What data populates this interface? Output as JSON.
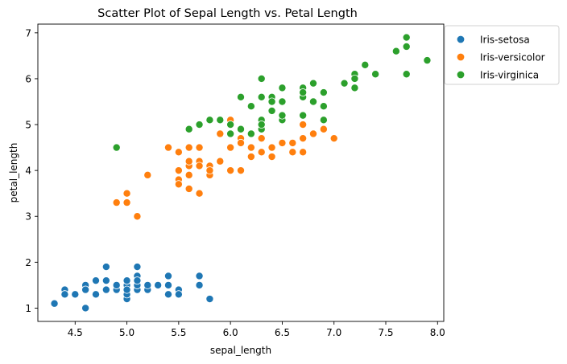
{
  "chart_data": {
    "type": "scatter",
    "title": "Scatter Plot of Sepal Length vs. Petal Length",
    "xlabel": "sepal_length",
    "ylabel": "petal_length",
    "xlim": [
      4.14,
      8.06
    ],
    "ylim": [
      0.71,
      7.19
    ],
    "xticks": [
      4.5,
      5.0,
      5.5,
      6.0,
      6.5,
      7.0,
      7.5,
      8.0
    ],
    "xtick_labels": [
      "4.5",
      "5.0",
      "5.5",
      "6.0",
      "6.5",
      "7.0",
      "7.5",
      "8.0"
    ],
    "yticks": [
      1,
      2,
      3,
      4,
      5,
      6,
      7
    ],
    "ytick_labels": [
      "1",
      "2",
      "3",
      "4",
      "5",
      "6",
      "7"
    ],
    "grid": false,
    "legend_position": "outside-top-right",
    "series": [
      {
        "name": "Iris-setosa",
        "color": "#1f77b4",
        "points": [
          [
            5.1,
            1.4
          ],
          [
            4.9,
            1.4
          ],
          [
            4.7,
            1.3
          ],
          [
            4.6,
            1.5
          ],
          [
            5.0,
            1.4
          ],
          [
            5.4,
            1.7
          ],
          [
            4.6,
            1.4
          ],
          [
            5.0,
            1.5
          ],
          [
            4.4,
            1.4
          ],
          [
            4.9,
            1.5
          ],
          [
            5.4,
            1.5
          ],
          [
            4.8,
            1.6
          ],
          [
            4.8,
            1.4
          ],
          [
            4.3,
            1.1
          ],
          [
            5.8,
            1.2
          ],
          [
            5.7,
            1.5
          ],
          [
            5.4,
            1.3
          ],
          [
            5.1,
            1.4
          ],
          [
            5.7,
            1.7
          ],
          [
            5.1,
            1.5
          ],
          [
            5.4,
            1.7
          ],
          [
            5.1,
            1.5
          ],
          [
            4.6,
            1.0
          ],
          [
            5.1,
            1.7
          ],
          [
            4.8,
            1.9
          ],
          [
            5.0,
            1.6
          ],
          [
            5.0,
            1.6
          ],
          [
            5.2,
            1.5
          ],
          [
            5.2,
            1.4
          ],
          [
            4.7,
            1.6
          ],
          [
            4.8,
            1.6
          ],
          [
            5.4,
            1.5
          ],
          [
            5.2,
            1.5
          ],
          [
            5.5,
            1.4
          ],
          [
            4.9,
            1.5
          ],
          [
            5.0,
            1.2
          ],
          [
            5.5,
            1.3
          ],
          [
            4.9,
            1.5
          ],
          [
            4.4,
            1.3
          ],
          [
            5.1,
            1.5
          ],
          [
            5.0,
            1.3
          ],
          [
            4.5,
            1.3
          ],
          [
            4.4,
            1.3
          ],
          [
            5.0,
            1.6
          ],
          [
            5.1,
            1.9
          ],
          [
            4.8,
            1.4
          ],
          [
            5.1,
            1.6
          ],
          [
            4.6,
            1.4
          ],
          [
            5.3,
            1.5
          ],
          [
            5.0,
            1.4
          ]
        ]
      },
      {
        "name": "Iris-versicolor",
        "color": "#ff7f0e",
        "points": [
          [
            7.0,
            4.7
          ],
          [
            6.4,
            4.5
          ],
          [
            6.9,
            4.9
          ],
          [
            5.5,
            4.0
          ],
          [
            6.5,
            4.6
          ],
          [
            5.7,
            4.5
          ],
          [
            6.3,
            4.7
          ],
          [
            4.9,
            3.3
          ],
          [
            6.6,
            4.6
          ],
          [
            5.2,
            3.9
          ],
          [
            5.0,
            3.5
          ],
          [
            5.9,
            4.2
          ],
          [
            6.0,
            4.0
          ],
          [
            6.1,
            4.7
          ],
          [
            5.6,
            3.6
          ],
          [
            6.7,
            4.4
          ],
          [
            5.6,
            4.5
          ],
          [
            5.8,
            4.1
          ],
          [
            6.2,
            4.5
          ],
          [
            5.6,
            3.9
          ],
          [
            5.9,
            4.8
          ],
          [
            6.1,
            4.0
          ],
          [
            6.3,
            4.9
          ],
          [
            6.1,
            4.7
          ],
          [
            6.4,
            4.3
          ],
          [
            6.6,
            4.4
          ],
          [
            6.8,
            4.8
          ],
          [
            6.7,
            5.0
          ],
          [
            6.0,
            4.5
          ],
          [
            5.7,
            3.5
          ],
          [
            5.5,
            3.8
          ],
          [
            5.5,
            3.7
          ],
          [
            5.8,
            3.9
          ],
          [
            6.0,
            5.1
          ],
          [
            5.4,
            4.5
          ],
          [
            6.0,
            4.5
          ],
          [
            6.7,
            4.7
          ],
          [
            6.3,
            4.4
          ],
          [
            5.6,
            4.1
          ],
          [
            5.5,
            4.0
          ],
          [
            5.5,
            4.4
          ],
          [
            6.1,
            4.6
          ],
          [
            5.8,
            4.0
          ],
          [
            5.0,
            3.3
          ],
          [
            5.6,
            4.2
          ],
          [
            5.7,
            4.2
          ],
          [
            5.7,
            4.2
          ],
          [
            6.2,
            4.3
          ],
          [
            5.1,
            3.0
          ],
          [
            5.7,
            4.1
          ]
        ]
      },
      {
        "name": "Iris-virginica",
        "color": "#2ca02c",
        "points": [
          [
            6.3,
            6.0
          ],
          [
            5.8,
            5.1
          ],
          [
            7.1,
            5.9
          ],
          [
            6.3,
            5.6
          ],
          [
            6.5,
            5.8
          ],
          [
            7.6,
            6.6
          ],
          [
            4.9,
            4.5
          ],
          [
            7.3,
            6.3
          ],
          [
            6.7,
            5.8
          ],
          [
            7.2,
            6.1
          ],
          [
            6.5,
            5.1
          ],
          [
            6.4,
            5.3
          ],
          [
            6.8,
            5.5
          ],
          [
            5.7,
            5.0
          ],
          [
            5.8,
            5.1
          ],
          [
            6.4,
            5.3
          ],
          [
            6.5,
            5.5
          ],
          [
            7.7,
            6.7
          ],
          [
            7.7,
            6.9
          ],
          [
            6.0,
            5.0
          ],
          [
            6.9,
            5.7
          ],
          [
            5.6,
            4.9
          ],
          [
            7.7,
            6.7
          ],
          [
            6.3,
            4.9
          ],
          [
            6.7,
            5.7
          ],
          [
            7.2,
            6.0
          ],
          [
            6.2,
            4.8
          ],
          [
            6.1,
            4.9
          ],
          [
            6.4,
            5.6
          ],
          [
            7.2,
            5.8
          ],
          [
            7.4,
            6.1
          ],
          [
            7.9,
            6.4
          ],
          [
            6.4,
            5.6
          ],
          [
            6.3,
            5.1
          ],
          [
            6.1,
            5.6
          ],
          [
            7.7,
            6.1
          ],
          [
            6.3,
            5.6
          ],
          [
            6.4,
            5.5
          ],
          [
            6.0,
            4.8
          ],
          [
            6.9,
            5.4
          ],
          [
            6.7,
            5.6
          ],
          [
            6.9,
            5.1
          ],
          [
            5.8,
            5.1
          ],
          [
            6.8,
            5.9
          ],
          [
            6.7,
            5.7
          ],
          [
            6.7,
            5.2
          ],
          [
            6.3,
            5.0
          ],
          [
            6.5,
            5.2
          ],
          [
            6.2,
            5.4
          ],
          [
            5.9,
            5.1
          ]
        ]
      }
    ]
  }
}
